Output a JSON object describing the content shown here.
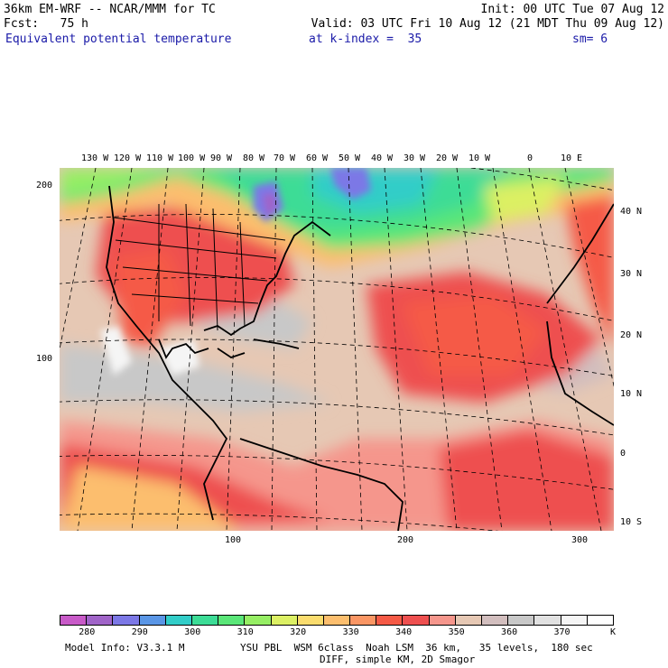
{
  "header": {
    "model": "36km EM-WRF -- NCAR/MMM for TC",
    "init": "Init: 00 UTC Tue 07 Aug 12",
    "fcst": "Fcst:   75 h",
    "valid": "Valid: 03 UTC Fri 10 Aug 12 (21 MDT Thu 09 Aug 12)",
    "field": "Equivalent potential temperature",
    "kindex": "at k-index =  35",
    "sm": "sm= 6"
  },
  "map": {
    "top_lon_labels": [
      "130 W",
      "120 W",
      "110 W",
      "100 W",
      "90 W",
      "80 W",
      "70 W",
      "60 W",
      "50 W",
      "40 W",
      "30 W",
      "20 W",
      "10 W",
      "0",
      "10 E"
    ],
    "right_lat_labels": [
      "40 N",
      "30 N",
      "20 N",
      "10 N",
      "0",
      "10 S"
    ],
    "left_grid_labels": [
      "200",
      "100"
    ],
    "bottom_grid_labels": [
      "100",
      "200",
      "300"
    ]
  },
  "colorbar": {
    "colors": [
      "#c85ac8",
      "#a064c8",
      "#7c78e6",
      "#5a96e6",
      "#32cdc8",
      "#3cdc96",
      "#5ae678",
      "#96ee64",
      "#dcf064",
      "#fadc6e",
      "#fcbe6e",
      "#fa9664",
      "#f55a46",
      "#ee5050",
      "#f5968c",
      "#e6c8b4",
      "#d2bebe",
      "#c8c8c8",
      "#e1e1e1",
      "#f5f5f5",
      "#ffffff"
    ],
    "labels": [
      "280",
      "290",
      "300",
      "310",
      "320",
      "330",
      "340",
      "350",
      "360",
      "370"
    ],
    "unit": "K"
  },
  "footer": {
    "model_info": "Model Info: V3.3.1 M",
    "physics": "YSU PBL  WSM 6class  Noah LSM  36 km,   35 levels,  180 sec",
    "diff": "DIFF, simple KM, 2D Smagor"
  }
}
